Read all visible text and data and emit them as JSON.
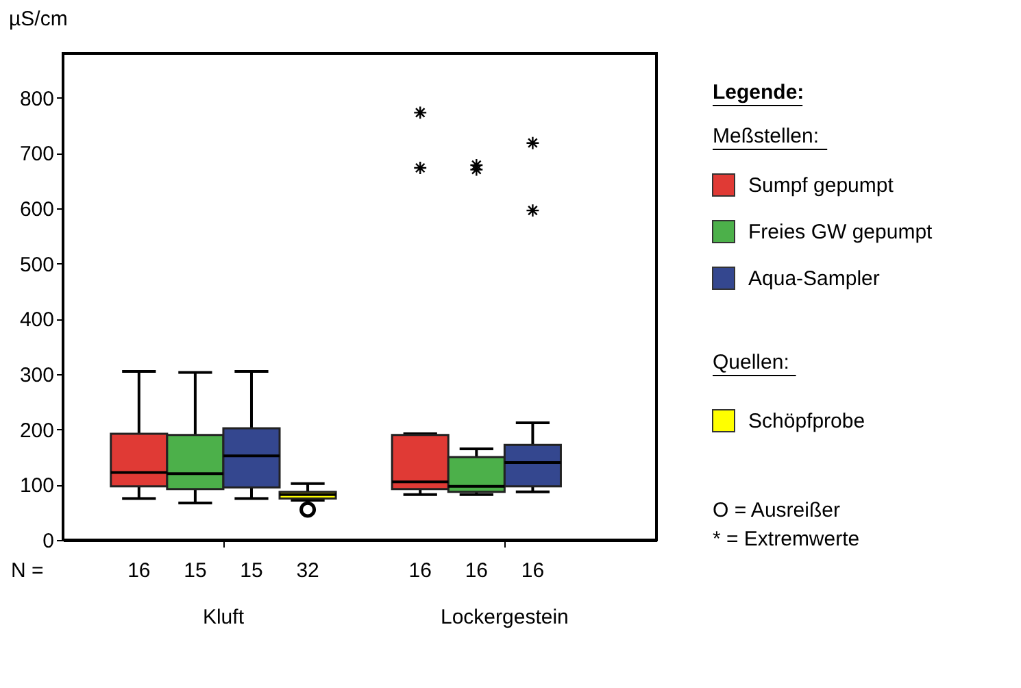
{
  "chart_data": {
    "type": "box",
    "ylabel": "µS/cm",
    "categories": [
      "Kluft",
      "Lockergestein"
    ],
    "ylim": [
      0,
      880
    ],
    "yticks": [
      0,
      100,
      200,
      300,
      400,
      500,
      600,
      700,
      800
    ],
    "grid": false,
    "legend": "right",
    "legend_title": "Legende:",
    "annotations": [
      "N =",
      "Meßstellen:",
      "Quellen:",
      "O = Ausreißer",
      "* = Extremwerte"
    ],
    "series": [
      {
        "name": "Sumpf gepumpt",
        "color": "#e03a35",
        "marker": "star",
        "value_labels": [
          "16",
          "16"
        ],
        "boxes": [
          {
            "low": 75,
            "q1": 97,
            "median": 122,
            "q3": 192,
            "high": 305
          },
          {
            "low": 82,
            "q1": 92,
            "median": 105,
            "q3": 190,
            "high": 192,
            "outliers": [
              773,
              673
            ]
          }
        ]
      },
      {
        "name": "Freies GW gepumpt",
        "color": "#4cb04a",
        "marker": "star",
        "value_labels": [
          "15",
          "16"
        ],
        "boxes": [
          {
            "low": 67,
            "q1": 92,
            "median": 120,
            "q3": 190,
            "high": 303
          },
          {
            "low": 82,
            "q1": 87,
            "median": 97,
            "q3": 150,
            "high": 165,
            "outliers": [
              670,
              678
            ]
          }
        ]
      },
      {
        "name": "Aqua-Sampler",
        "color": "#34478f",
        "marker": "star",
        "value_labels": [
          "15",
          "16"
        ],
        "boxes": [
          {
            "low": 75,
            "q1": 95,
            "median": 152,
            "q3": 202,
            "high": 305
          },
          {
            "low": 87,
            "q1": 97,
            "median": 140,
            "q3": 172,
            "high": 212,
            "outliers": [
              718,
              596
            ]
          }
        ]
      },
      {
        "name": "Schöpfprobe",
        "color": "#ffff00",
        "marker": "circle",
        "value_labels": [
          "32",
          null
        ],
        "boxes": [
          {
            "low": 72,
            "q1": 75,
            "median": 82,
            "q3": 87,
            "high": 102,
            "outliers": [
              55
            ]
          },
          null
        ]
      }
    ]
  }
}
